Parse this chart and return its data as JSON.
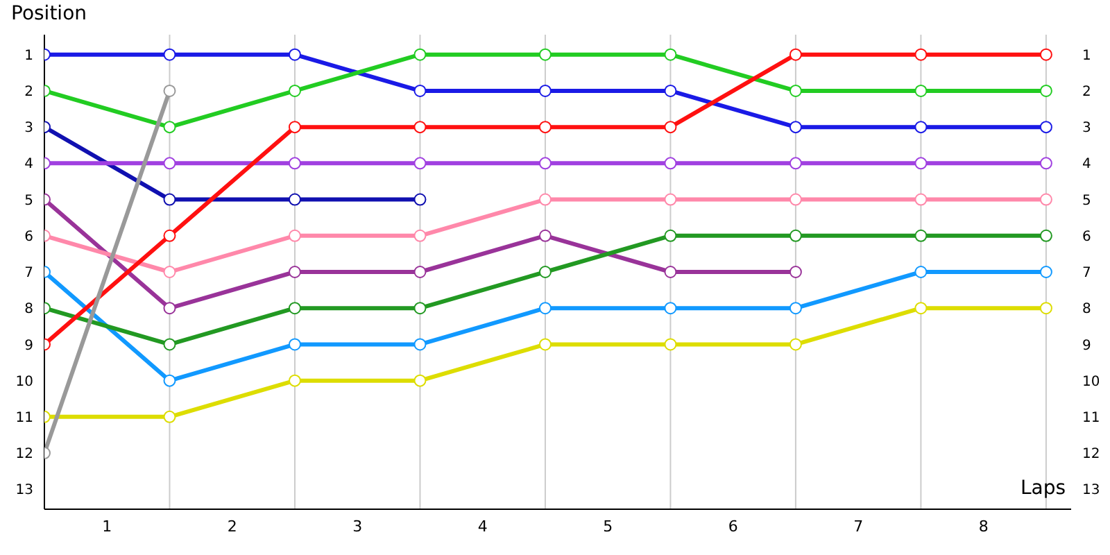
{
  "chart_data": {
    "type": "line",
    "xlabel": "Laps",
    "ylabel": "Position",
    "x": [
      0,
      1,
      2,
      3,
      4,
      5,
      6,
      7,
      8
    ],
    "xlim": [
      0,
      8.2
    ],
    "xticks": [
      {
        "value": 0,
        "label": null
      },
      {
        "value": 0.5,
        "label": "1"
      },
      {
        "value": 1,
        "label": null
      },
      {
        "value": 1.5,
        "label": "2"
      },
      {
        "value": 2,
        "label": null
      },
      {
        "value": 2.5,
        "label": "3"
      },
      {
        "value": 3,
        "label": null
      },
      {
        "value": 3.5,
        "label": "4"
      },
      {
        "value": 4,
        "label": null
      },
      {
        "value": 4.5,
        "label": "5"
      },
      {
        "value": 5,
        "label": null
      },
      {
        "value": 5.5,
        "label": "6"
      },
      {
        "value": 6,
        "label": null
      },
      {
        "value": 6.5,
        "label": "7"
      },
      {
        "value": 7,
        "label": null
      },
      {
        "value": 7.5,
        "label": "8"
      },
      {
        "value": 8,
        "label": null
      }
    ],
    "ylim": [
      13.55,
      0.45
    ],
    "yticks": [
      1,
      2,
      3,
      4,
      5,
      6,
      7,
      8,
      9,
      10,
      11,
      12,
      13
    ],
    "y2lim": [
      13.55,
      0.45
    ],
    "y2ticks": [
      1,
      2,
      3,
      4,
      5,
      6,
      7,
      8,
      9,
      10,
      11,
      12,
      13
    ],
    "grid": "x",
    "marker": "circle",
    "line_style": "solid",
    "series": [
      {
        "color": "#1a1ae6",
        "values": [
          1,
          1,
          1,
          2,
          2,
          2,
          3,
          3,
          3
        ]
      },
      {
        "color": "#22cc22",
        "values": [
          2,
          3,
          2,
          1,
          1,
          1,
          2,
          2,
          2
        ]
      },
      {
        "color": "#1010b0",
        "values": [
          3,
          5,
          5,
          5,
          null,
          null,
          null,
          null,
          null
        ]
      },
      {
        "color": "#a040e0",
        "values": [
          4,
          4,
          4,
          4,
          4,
          4,
          4,
          4,
          4
        ]
      },
      {
        "color": "#993399",
        "values": [
          5,
          8,
          7,
          7,
          6,
          7,
          7,
          null,
          null
        ]
      },
      {
        "color": "#ff88aa",
        "values": [
          6,
          7,
          6,
          6,
          5,
          5,
          5,
          5,
          5
        ]
      },
      {
        "color": "#1199ff",
        "values": [
          7,
          10,
          9,
          9,
          8,
          8,
          8,
          7,
          7
        ]
      },
      {
        "color": "#229922",
        "values": [
          8,
          9,
          8,
          8,
          7,
          6,
          6,
          6,
          6
        ]
      },
      {
        "color": "#ff1010",
        "values": [
          9,
          6,
          3,
          3,
          3,
          3,
          1,
          1,
          1
        ]
      },
      {
        "color": "#dddd00",
        "values": [
          11,
          11,
          10,
          10,
          9,
          9,
          9,
          8,
          8
        ]
      },
      {
        "color": "#999999",
        "values": [
          12,
          2,
          null,
          null,
          null,
          null,
          null,
          null,
          null
        ]
      }
    ]
  }
}
